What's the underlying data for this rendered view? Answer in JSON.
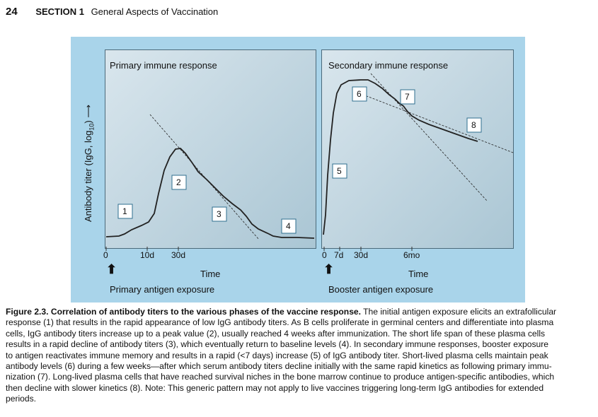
{
  "header": {
    "page_number": "24",
    "section": "SECTION 1",
    "section_title": "General Aspects of Vaccination"
  },
  "figure": {
    "y_axis_label": "Antibody titer (IgG, log",
    "y_axis_sub": "10",
    "y_axis_close": ")",
    "primary": {
      "title": "Primary immune response",
      "ticks": [
        "0",
        "10d",
        "30d"
      ],
      "time_label": "Time",
      "exposure": "Primary antigen exposure",
      "markers": [
        "1",
        "2",
        "3",
        "4"
      ]
    },
    "secondary": {
      "title": "Secondary immune response",
      "ticks": [
        "0",
        "7d",
        "30d",
        "6mo"
      ],
      "time_label": "Time",
      "exposure": "Booster antigen exposure",
      "markers": [
        "5",
        "6",
        "7",
        "8"
      ]
    }
  },
  "caption": {
    "lines": [
      {
        "bold": "Figure 2.3. Correlation of antibody titers to the various phases of the vaccine response.",
        "text": " The initial antigen exposure elicits an extrafollicular"
      },
      {
        "text": "response (1) that results in the rapid appearance of low IgG antibody titers. As B cells proliferate in germinal centers and differentiate into plasma"
      },
      {
        "text": "cells, IgG antibody titers increase up to a peak value (2), usually reached 4 weeks after immunization. The short life span of these plasma cells"
      },
      {
        "text": "results in a rapid decline of antibody titers (3), which eventually return to baseline levels (4). In secondary immune responses, booster exposure"
      },
      {
        "text": "to antigen reactivates immune memory and results in a rapid (<7 days) increase (5) of IgG antibody titer. Short-lived plasma cells maintain peak"
      },
      {
        "text": "antibody levels (6) during a few weeks—after which serum antibody titers decline initially with the same rapid kinetics as following primary immu-"
      },
      {
        "text": "nization (7). Long-lived plasma cells that have reached survival niches in the bone marrow continue to produce antigen-specific antibodies, which"
      },
      {
        "text": "then decline with slower kinetics (8). Note: This generic pattern may not apply to live vaccines triggering long-term IgG antibodies for extended"
      },
      {
        "text": "periods."
      }
    ]
  }
}
